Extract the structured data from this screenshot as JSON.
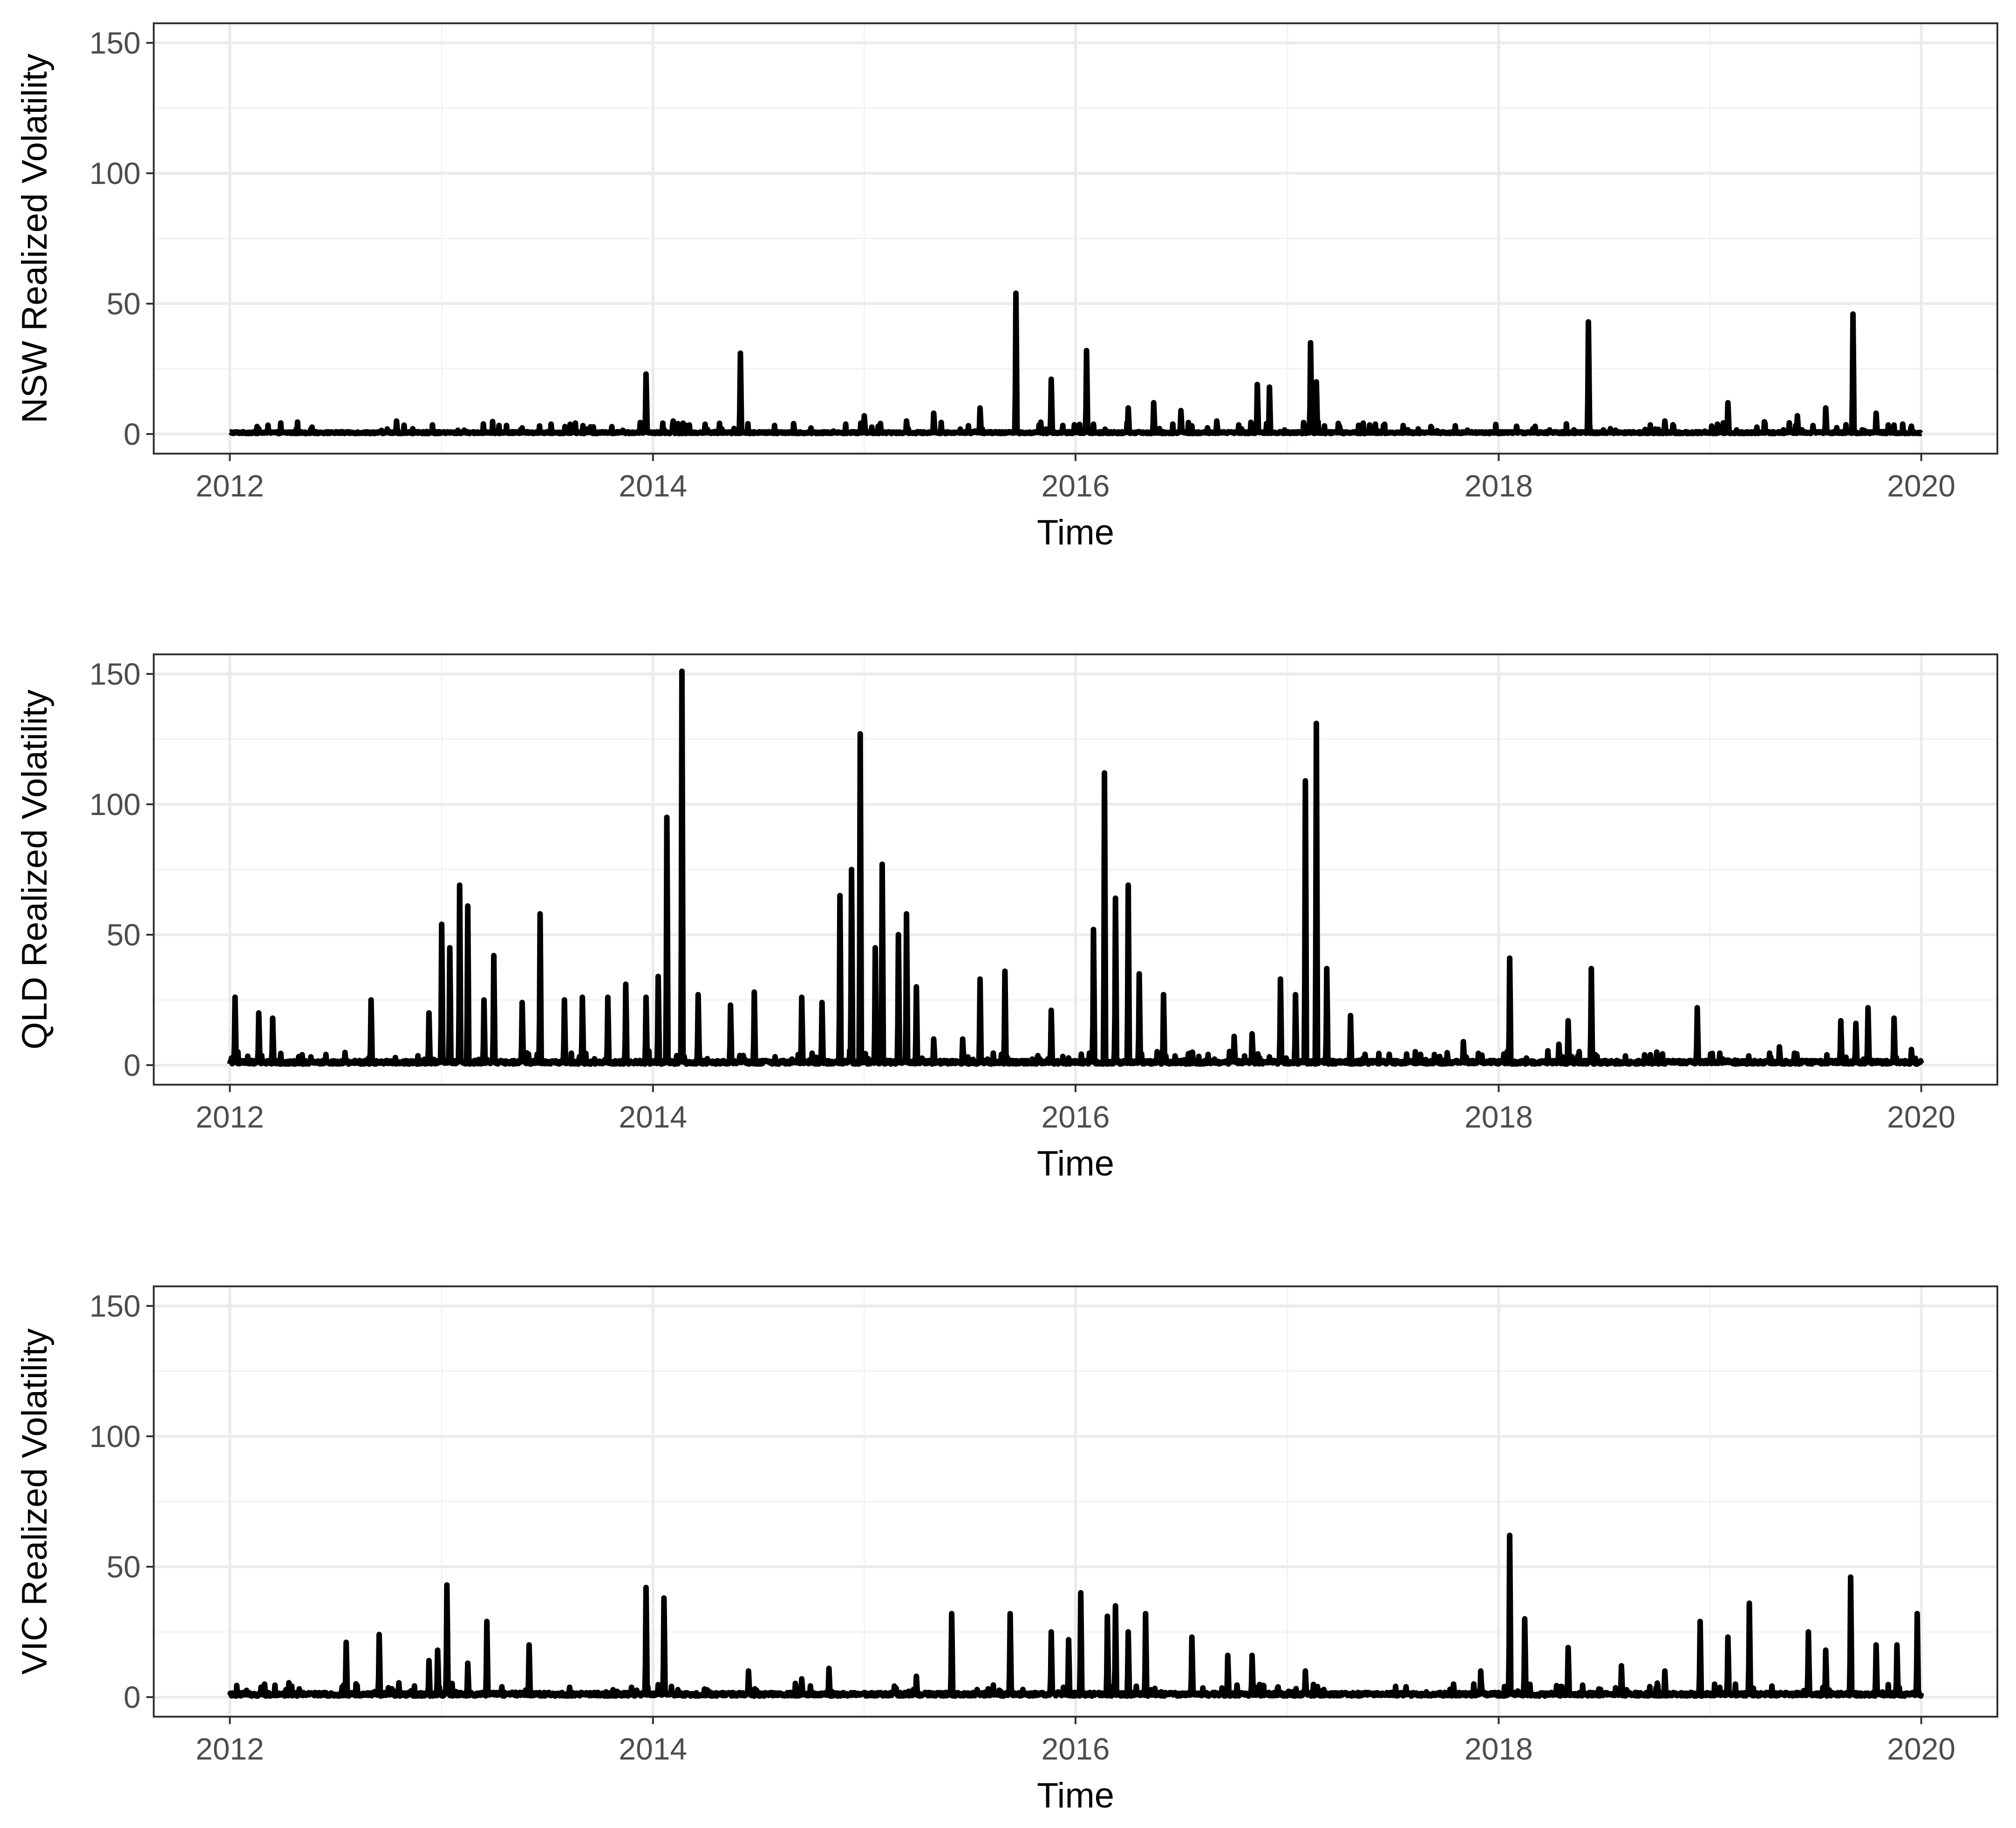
{
  "chart_data": [
    {
      "type": "line",
      "xlabel": "Time",
      "ylabel": "NSW Realized Volatility",
      "xlim": [
        "2012-01-01",
        "2020-01-01"
      ],
      "ylim": [
        0,
        155
      ],
      "x_ticks": [
        "2012",
        "2014",
        "2016",
        "2018",
        "2020"
      ],
      "y_ticks": [
        "0",
        "50",
        "100",
        "150"
      ],
      "grid": true,
      "baseline": 0.5,
      "peaks": [
        {
          "x": "2012-02-20",
          "y": 2
        },
        {
          "x": "2012-10-15",
          "y": 5
        },
        {
          "x": "2013-05-20",
          "y": 2
        },
        {
          "x": "2013-12-20",
          "y": 23
        },
        {
          "x": "2014-02-05",
          "y": 5
        },
        {
          "x": "2014-06-01",
          "y": 31
        },
        {
          "x": "2014-09-01",
          "y": 4
        },
        {
          "x": "2015-01-01",
          "y": 7
        },
        {
          "x": "2015-03-15",
          "y": 5
        },
        {
          "x": "2015-05-01",
          "y": 8
        },
        {
          "x": "2015-07-20",
          "y": 10
        },
        {
          "x": "2015-09-20",
          "y": 54
        },
        {
          "x": "2015-11-20",
          "y": 21
        },
        {
          "x": "2016-01-20",
          "y": 32
        },
        {
          "x": "2016-04-01",
          "y": 10
        },
        {
          "x": "2016-05-15",
          "y": 12
        },
        {
          "x": "2016-07-01",
          "y": 9
        },
        {
          "x": "2016-09-01",
          "y": 5
        },
        {
          "x": "2016-11-10",
          "y": 19
        },
        {
          "x": "2016-12-01",
          "y": 18
        },
        {
          "x": "2017-02-10",
          "y": 35
        },
        {
          "x": "2017-02-20",
          "y": 20
        },
        {
          "x": "2017-04-01",
          "y": 3
        },
        {
          "x": "2018-02-01",
          "y": 3
        },
        {
          "x": "2018-06-05",
          "y": 43
        },
        {
          "x": "2018-10-15",
          "y": 5
        },
        {
          "x": "2019-02-01",
          "y": 12
        },
        {
          "x": "2019-06-01",
          "y": 7
        },
        {
          "x": "2019-07-20",
          "y": 10
        },
        {
          "x": "2019-09-05",
          "y": 46
        },
        {
          "x": "2019-10-15",
          "y": 8
        },
        {
          "x": "2019-12-15",
          "y": 3
        }
      ]
    },
    {
      "type": "line",
      "xlabel": "Time",
      "ylabel": "QLD Realized Volatility",
      "xlim": [
        "2012-01-01",
        "2020-01-01"
      ],
      "ylim": [
        0,
        155
      ],
      "x_ticks": [
        "2012",
        "2014",
        "2016",
        "2018",
        "2020"
      ],
      "y_ticks": [
        "0",
        "50",
        "100",
        "150"
      ],
      "grid": true,
      "baseline": 1,
      "peaks": [
        {
          "x": "2012-01-10",
          "y": 26
        },
        {
          "x": "2012-02-20",
          "y": 20
        },
        {
          "x": "2012-03-15",
          "y": 18
        },
        {
          "x": "2012-09-01",
          "y": 25
        },
        {
          "x": "2012-12-10",
          "y": 20
        },
        {
          "x": "2013-01-01",
          "y": 54
        },
        {
          "x": "2013-01-15",
          "y": 45
        },
        {
          "x": "2013-02-01",
          "y": 69
        },
        {
          "x": "2013-02-15",
          "y": 61
        },
        {
          "x": "2013-03-15",
          "y": 25
        },
        {
          "x": "2013-04-01",
          "y": 42
        },
        {
          "x": "2013-05-20",
          "y": 24
        },
        {
          "x": "2013-06-20",
          "y": 58
        },
        {
          "x": "2013-08-01",
          "y": 25
        },
        {
          "x": "2013-09-01",
          "y": 26
        },
        {
          "x": "2013-10-15",
          "y": 26
        },
        {
          "x": "2013-11-15",
          "y": 31
        },
        {
          "x": "2013-12-20",
          "y": 26
        },
        {
          "x": "2014-01-10",
          "y": 34
        },
        {
          "x": "2014-01-25",
          "y": 95
        },
        {
          "x": "2014-02-20",
          "y": 151
        },
        {
          "x": "2014-03-20",
          "y": 27
        },
        {
          "x": "2014-05-15",
          "y": 23
        },
        {
          "x": "2014-06-25",
          "y": 28
        },
        {
          "x": "2014-09-15",
          "y": 26
        },
        {
          "x": "2014-10-20",
          "y": 24
        },
        {
          "x": "2014-11-20",
          "y": 65
        },
        {
          "x": "2014-12-10",
          "y": 75
        },
        {
          "x": "2014-12-25",
          "y": 127
        },
        {
          "x": "2015-01-20",
          "y": 45
        },
        {
          "x": "2015-02-01",
          "y": 77
        },
        {
          "x": "2015-03-01",
          "y": 50
        },
        {
          "x": "2015-03-15",
          "y": 58
        },
        {
          "x": "2015-04-01",
          "y": 30
        },
        {
          "x": "2015-05-01",
          "y": 10
        },
        {
          "x": "2015-06-20",
          "y": 10
        },
        {
          "x": "2015-07-20",
          "y": 33
        },
        {
          "x": "2015-09-01",
          "y": 36
        },
        {
          "x": "2015-11-20",
          "y": 21
        },
        {
          "x": "2016-02-01",
          "y": 52
        },
        {
          "x": "2016-02-20",
          "y": 112
        },
        {
          "x": "2016-03-10",
          "y": 64
        },
        {
          "x": "2016-04-01",
          "y": 69
        },
        {
          "x": "2016-04-20",
          "y": 35
        },
        {
          "x": "2016-06-01",
          "y": 27
        },
        {
          "x": "2016-10-01",
          "y": 11
        },
        {
          "x": "2016-11-01",
          "y": 12
        },
        {
          "x": "2016-12-20",
          "y": 33
        },
        {
          "x": "2017-01-15",
          "y": 27
        },
        {
          "x": "2017-02-01",
          "y": 109
        },
        {
          "x": "2017-02-20",
          "y": 131
        },
        {
          "x": "2017-03-10",
          "y": 37
        },
        {
          "x": "2017-04-20",
          "y": 19
        },
        {
          "x": "2017-11-01",
          "y": 9
        },
        {
          "x": "2018-01-20",
          "y": 41
        },
        {
          "x": "2018-04-15",
          "y": 8
        },
        {
          "x": "2018-05-01",
          "y": 17
        },
        {
          "x": "2018-06-10",
          "y": 37
        },
        {
          "x": "2018-10-01",
          "y": 5
        },
        {
          "x": "2018-12-10",
          "y": 22
        },
        {
          "x": "2019-05-01",
          "y": 7
        },
        {
          "x": "2019-08-15",
          "y": 17
        },
        {
          "x": "2019-09-10",
          "y": 16
        },
        {
          "x": "2019-10-01",
          "y": 22
        },
        {
          "x": "2019-11-15",
          "y": 18
        },
        {
          "x": "2019-12-15",
          "y": 6
        }
      ]
    },
    {
      "type": "line",
      "xlabel": "Time",
      "ylabel": "VIC Realized Volatility",
      "xlim": [
        "2012-01-01",
        "2020-01-01"
      ],
      "ylim": [
        0,
        155
      ],
      "x_ticks": [
        "2012",
        "2014",
        "2016",
        "2018",
        "2020"
      ],
      "y_ticks": [
        "0",
        "50",
        "100",
        "150"
      ],
      "grid": true,
      "baseline": 1,
      "peaks": [
        {
          "x": "2012-03-01",
          "y": 5
        },
        {
          "x": "2012-07-20",
          "y": 21
        },
        {
          "x": "2012-09-15",
          "y": 24
        },
        {
          "x": "2012-12-10",
          "y": 14
        },
        {
          "x": "2012-12-25",
          "y": 18
        },
        {
          "x": "2013-01-10",
          "y": 43
        },
        {
          "x": "2013-02-15",
          "y": 13
        },
        {
          "x": "2013-03-20",
          "y": 29
        },
        {
          "x": "2013-06-01",
          "y": 20
        },
        {
          "x": "2013-12-20",
          "y": 42
        },
        {
          "x": "2014-01-20",
          "y": 38
        },
        {
          "x": "2014-06-15",
          "y": 10
        },
        {
          "x": "2014-09-15",
          "y": 7
        },
        {
          "x": "2014-11-01",
          "y": 11
        },
        {
          "x": "2015-04-01",
          "y": 8
        },
        {
          "x": "2015-06-01",
          "y": 32
        },
        {
          "x": "2015-09-10",
          "y": 32
        },
        {
          "x": "2015-11-20",
          "y": 25
        },
        {
          "x": "2015-12-20",
          "y": 22
        },
        {
          "x": "2016-01-10",
          "y": 40
        },
        {
          "x": "2016-02-25",
          "y": 31
        },
        {
          "x": "2016-03-10",
          "y": 35
        },
        {
          "x": "2016-04-01",
          "y": 25
        },
        {
          "x": "2016-05-01",
          "y": 32
        },
        {
          "x": "2016-07-20",
          "y": 23
        },
        {
          "x": "2016-09-20",
          "y": 16
        },
        {
          "x": "2016-11-01",
          "y": 16
        },
        {
          "x": "2017-02-01",
          "y": 10
        },
        {
          "x": "2017-10-15",
          "y": 5
        },
        {
          "x": "2017-12-01",
          "y": 10
        },
        {
          "x": "2018-01-20",
          "y": 62
        },
        {
          "x": "2018-02-15",
          "y": 30
        },
        {
          "x": "2018-05-01",
          "y": 19
        },
        {
          "x": "2018-08-01",
          "y": 12
        },
        {
          "x": "2018-10-15",
          "y": 10
        },
        {
          "x": "2018-12-15",
          "y": 29
        },
        {
          "x": "2019-02-01",
          "y": 23
        },
        {
          "x": "2019-03-10",
          "y": 36
        },
        {
          "x": "2019-06-20",
          "y": 25
        },
        {
          "x": "2019-07-20",
          "y": 18
        },
        {
          "x": "2019-09-01",
          "y": 46
        },
        {
          "x": "2019-10-15",
          "y": 20
        },
        {
          "x": "2019-11-20",
          "y": 20
        },
        {
          "x": "2019-12-25",
          "y": 32
        }
      ]
    }
  ]
}
